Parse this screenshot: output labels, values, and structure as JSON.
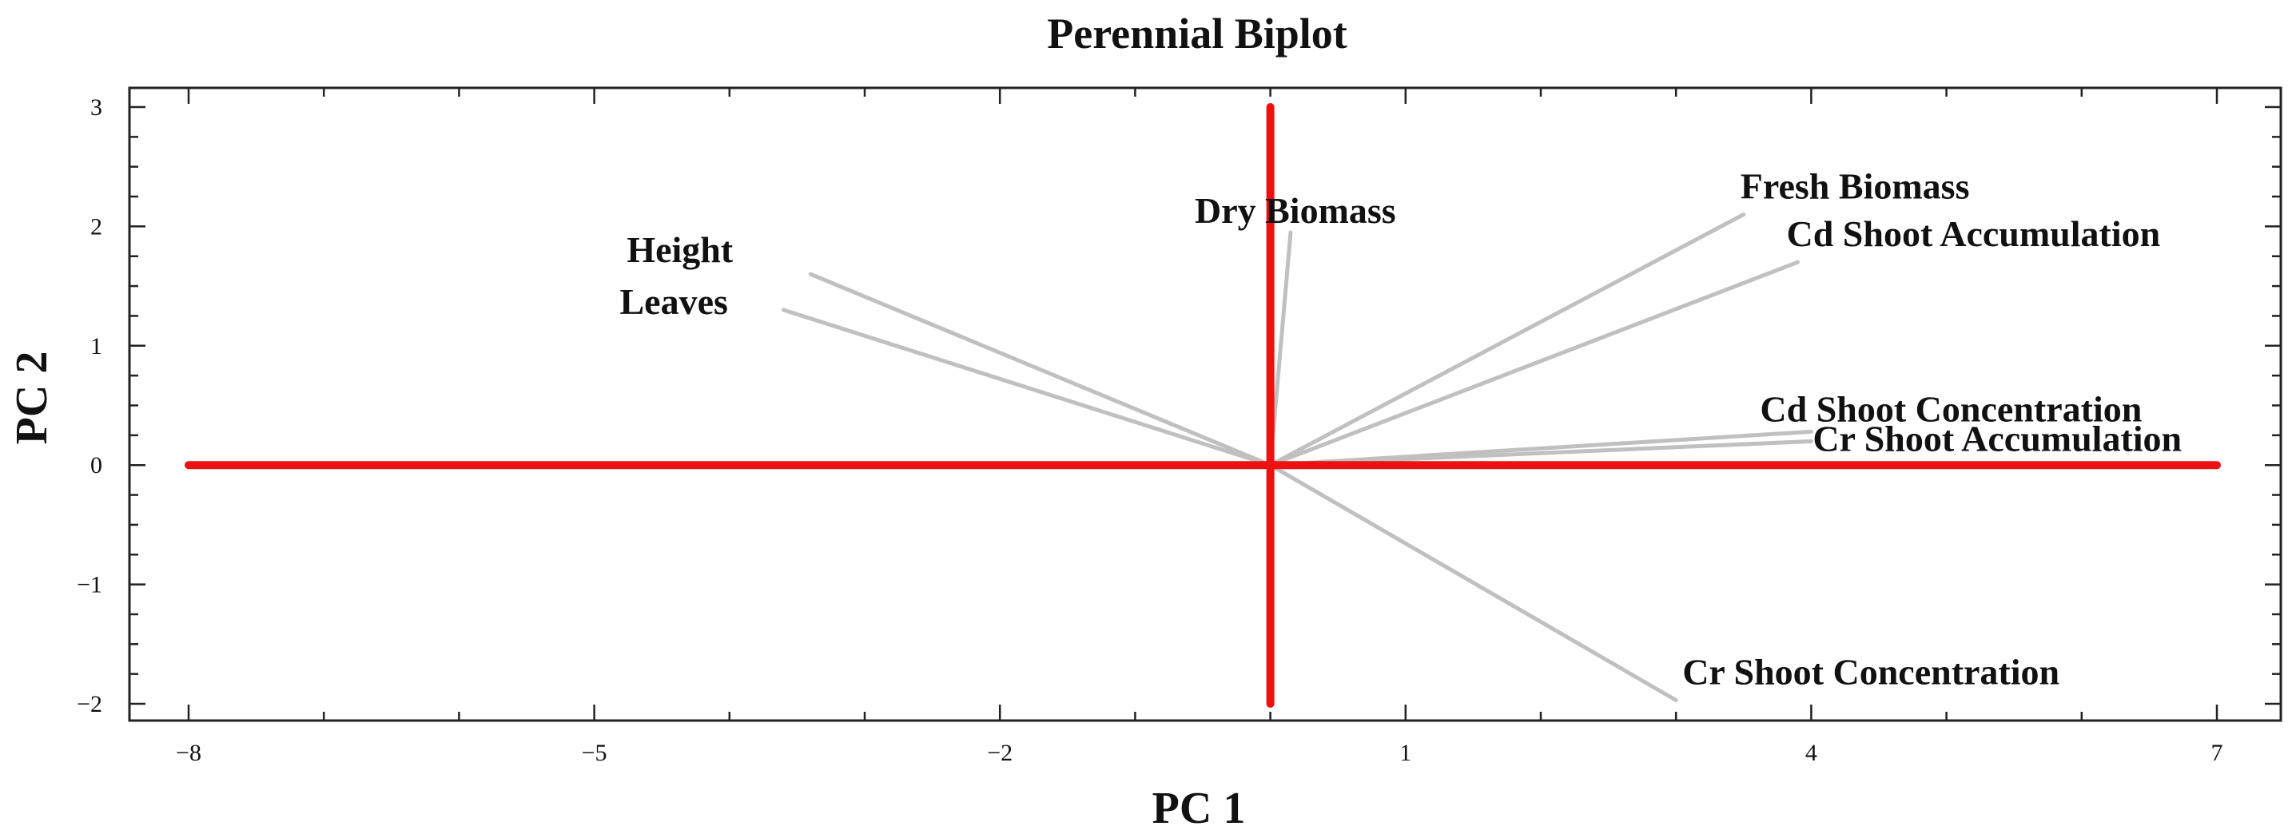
{
  "chart_data": {
    "type": "scatter",
    "title": "Perennial Biplot",
    "xlabel": "PC 1",
    "ylabel": "PC 2",
    "xlim": [
      -8,
      7
    ],
    "ylim": [
      -2,
      3
    ],
    "xticks": [
      -8,
      -5,
      -2,
      1,
      4,
      7
    ],
    "xtick_labels": [
      "−8",
      "−5",
      "−2",
      "1",
      "4",
      "7"
    ],
    "yticks": [
      -2,
      -1,
      0,
      1,
      2,
      3
    ],
    "ytick_labels": [
      "−2",
      "−1",
      "0",
      "1",
      "2",
      "3"
    ],
    "grid": false,
    "reference_lines": {
      "x": 0,
      "y": 0,
      "color": "#ee1111"
    },
    "vector_color": "#c0c0c0",
    "vectors": [
      {
        "name": "Height",
        "x": -3.4,
        "y": 1.6
      },
      {
        "name": "Leaves",
        "x": -3.6,
        "y": 1.3
      },
      {
        "name": "Dry Biomass",
        "x": 0.15,
        "y": 1.95
      },
      {
        "name": "Fresh Biomass",
        "x": 3.5,
        "y": 2.1
      },
      {
        "name": "Cd Shoot Accumulation",
        "x": 3.9,
        "y": 1.7
      },
      {
        "name": "Cd Shoot Concentration",
        "x": 4.0,
        "y": 0.28
      },
      {
        "name": "Cr Shoot Accumulation",
        "x": 4.0,
        "y": 0.2
      },
      {
        "name": "Cr Shoot Concentration",
        "x": 3.0,
        "y": -1.97
      }
    ]
  }
}
